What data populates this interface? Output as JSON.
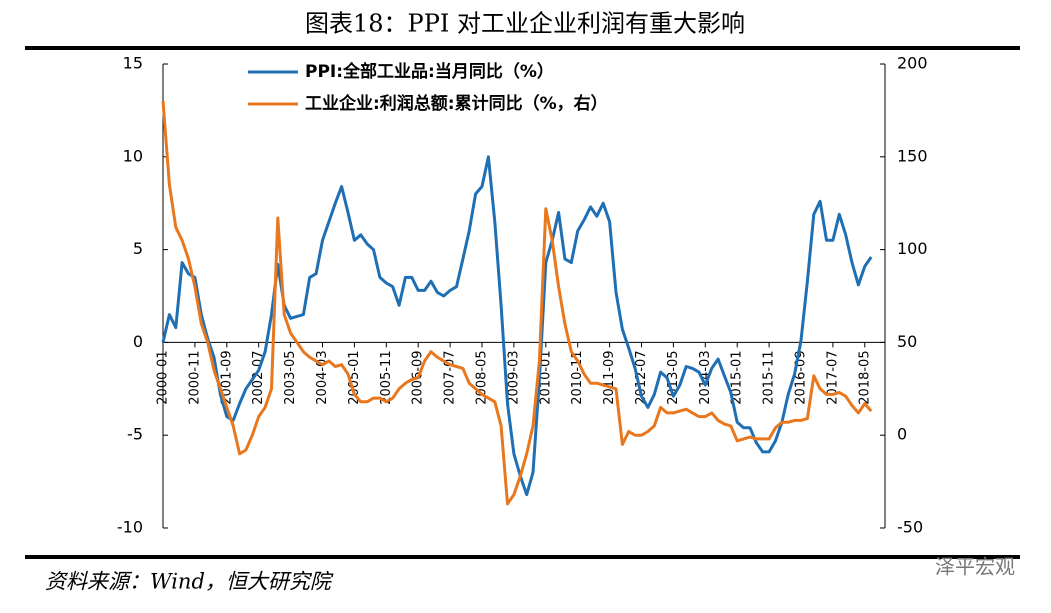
{
  "chart_data": {
    "type": "line",
    "title": "图表18：PPI 对工业企业利润有重大影响",
    "source": "资料来源：Wind，恒大研究院",
    "watermark": "泽平宏观",
    "x": [
      "2000-01",
      "2000-03",
      "2000-05",
      "2000-07",
      "2000-09",
      "2000-11",
      "2001-01",
      "2001-03",
      "2001-05",
      "2001-07",
      "2001-09",
      "2001-11",
      "2002-01",
      "2002-03",
      "2002-05",
      "2002-07",
      "2002-09",
      "2002-11",
      "2003-01",
      "2003-03",
      "2003-05",
      "2003-07",
      "2003-09",
      "2003-11",
      "2004-01",
      "2004-03",
      "2004-05",
      "2004-07",
      "2004-09",
      "2004-11",
      "2005-01",
      "2005-03",
      "2005-05",
      "2005-07",
      "2005-09",
      "2005-11",
      "2006-01",
      "2006-03",
      "2006-05",
      "2006-07",
      "2006-09",
      "2006-11",
      "2007-01",
      "2007-03",
      "2007-05",
      "2007-07",
      "2007-09",
      "2007-11",
      "2008-01",
      "2008-03",
      "2008-05",
      "2008-07",
      "2008-09",
      "2008-11",
      "2009-01",
      "2009-03",
      "2009-05",
      "2009-07",
      "2009-09",
      "2009-11",
      "2010-01",
      "2010-03",
      "2010-05",
      "2010-07",
      "2010-09",
      "2010-11",
      "2011-01",
      "2011-03",
      "2011-05",
      "2011-07",
      "2011-09",
      "2011-11",
      "2012-01",
      "2012-03",
      "2012-05",
      "2012-07",
      "2012-09",
      "2012-11",
      "2013-01",
      "2013-03",
      "2013-05",
      "2013-07",
      "2013-09",
      "2013-11",
      "2014-01",
      "2014-03",
      "2014-05",
      "2014-07",
      "2014-09",
      "2014-11",
      "2015-01",
      "2015-03",
      "2015-05",
      "2015-07",
      "2015-09",
      "2015-11",
      "2016-01",
      "2016-03",
      "2016-05",
      "2016-07",
      "2016-09",
      "2016-11",
      "2017-01",
      "2017-03",
      "2017-05",
      "2017-07",
      "2017-09",
      "2017-11",
      "2018-01",
      "2018-03",
      "2018-05",
      "2018-07"
    ],
    "xticks": [
      "2000-01",
      "2000-11",
      "2001-09",
      "2002-07",
      "2003-05",
      "2004-03",
      "2005-01",
      "2005-11",
      "2006-09",
      "2007-07",
      "2008-05",
      "2009-03",
      "2010-01",
      "2010-11",
      "2011-09",
      "2012-07",
      "2013-05",
      "2014-03",
      "2015-01",
      "2015-11",
      "2016-09",
      "2017-07",
      "2018-05"
    ],
    "series": [
      {
        "name": "PPI:全部工业品:当月同比（%）",
        "color": "#1f6fb4",
        "axis": "y",
        "values": [
          0,
          1.5,
          0.8,
          4.3,
          3.7,
          3.5,
          1.5,
          0.2,
          -0.8,
          -2.8,
          -4,
          -4.2,
          -3.3,
          -2.5,
          -2,
          -1.5,
          -0.5,
          1.5,
          4.2,
          2,
          1.3,
          1.4,
          1.5,
          3.5,
          3.7,
          5.5,
          6.5,
          7.5,
          8.4,
          7,
          5.5,
          5.8,
          5.3,
          5,
          3.5,
          3.2,
          3,
          2,
          3.5,
          3.5,
          2.8,
          2.8,
          3.3,
          2.7,
          2.5,
          2.8,
          3,
          4.5,
          6,
          8,
          8.4,
          10,
          6.5,
          2,
          -3.3,
          -6,
          -7.2,
          -8.2,
          -7,
          -2,
          4.3,
          5.5,
          7,
          4.5,
          4.3,
          6,
          6.6,
          7.3,
          6.8,
          7.5,
          6.5,
          2.7,
          0.7,
          -0.3,
          -1.4,
          -2.9,
          -3.5,
          -2.8,
          -1.6,
          -1.9,
          -2.9,
          -2.3,
          -1.3,
          -1.4,
          -1.6,
          -2.3,
          -1.4,
          -0.9,
          -1.8,
          -2.7,
          -4.3,
          -4.6,
          -4.6,
          -5.4,
          -5.9,
          -5.9,
          -5.3,
          -4.3,
          -2.8,
          -1.7,
          0.1,
          3.3,
          6.9,
          7.6,
          5.5,
          5.5,
          6.9,
          5.8,
          4.3,
          3.1,
          4.1,
          4.6
        ]
      },
      {
        "name": "工业企业:利润总额:累计同比（%，右）",
        "color": "#e8771e",
        "axis": "y2",
        "values": [
          180,
          135,
          112,
          105,
          95,
          80,
          60,
          50,
          35,
          25,
          15,
          5,
          -10,
          -8,
          0,
          10,
          15,
          25,
          117,
          65,
          55,
          50,
          45,
          42,
          40,
          38,
          40,
          37,
          38,
          33,
          22,
          18,
          18,
          20,
          20,
          18,
          20,
          25,
          28,
          30,
          31,
          40,
          45,
          42,
          40,
          38,
          37,
          36,
          28,
          25,
          22,
          20,
          18,
          5,
          -37,
          -32,
          -22,
          -10,
          5,
          40,
          122,
          105,
          80,
          60,
          45,
          40,
          33,
          28,
          28,
          27,
          26,
          25,
          -5,
          2,
          0,
          0,
          2,
          5,
          15,
          12,
          12,
          13,
          14,
          12,
          10,
          10,
          12,
          8,
          6,
          5,
          -3,
          -2,
          -1,
          -2,
          -2,
          -2,
          4,
          7,
          7,
          8,
          8,
          9,
          32,
          25,
          22,
          22,
          23,
          21,
          16,
          12,
          17,
          13
        ]
      }
    ],
    "ylim": [
      -10,
      15
    ],
    "yticks": [
      -10,
      -5,
      0,
      5,
      10,
      15
    ],
    "y2lim": [
      -50,
      200
    ],
    "y2ticks": [
      -50,
      0,
      50,
      100,
      150,
      200
    ]
  }
}
